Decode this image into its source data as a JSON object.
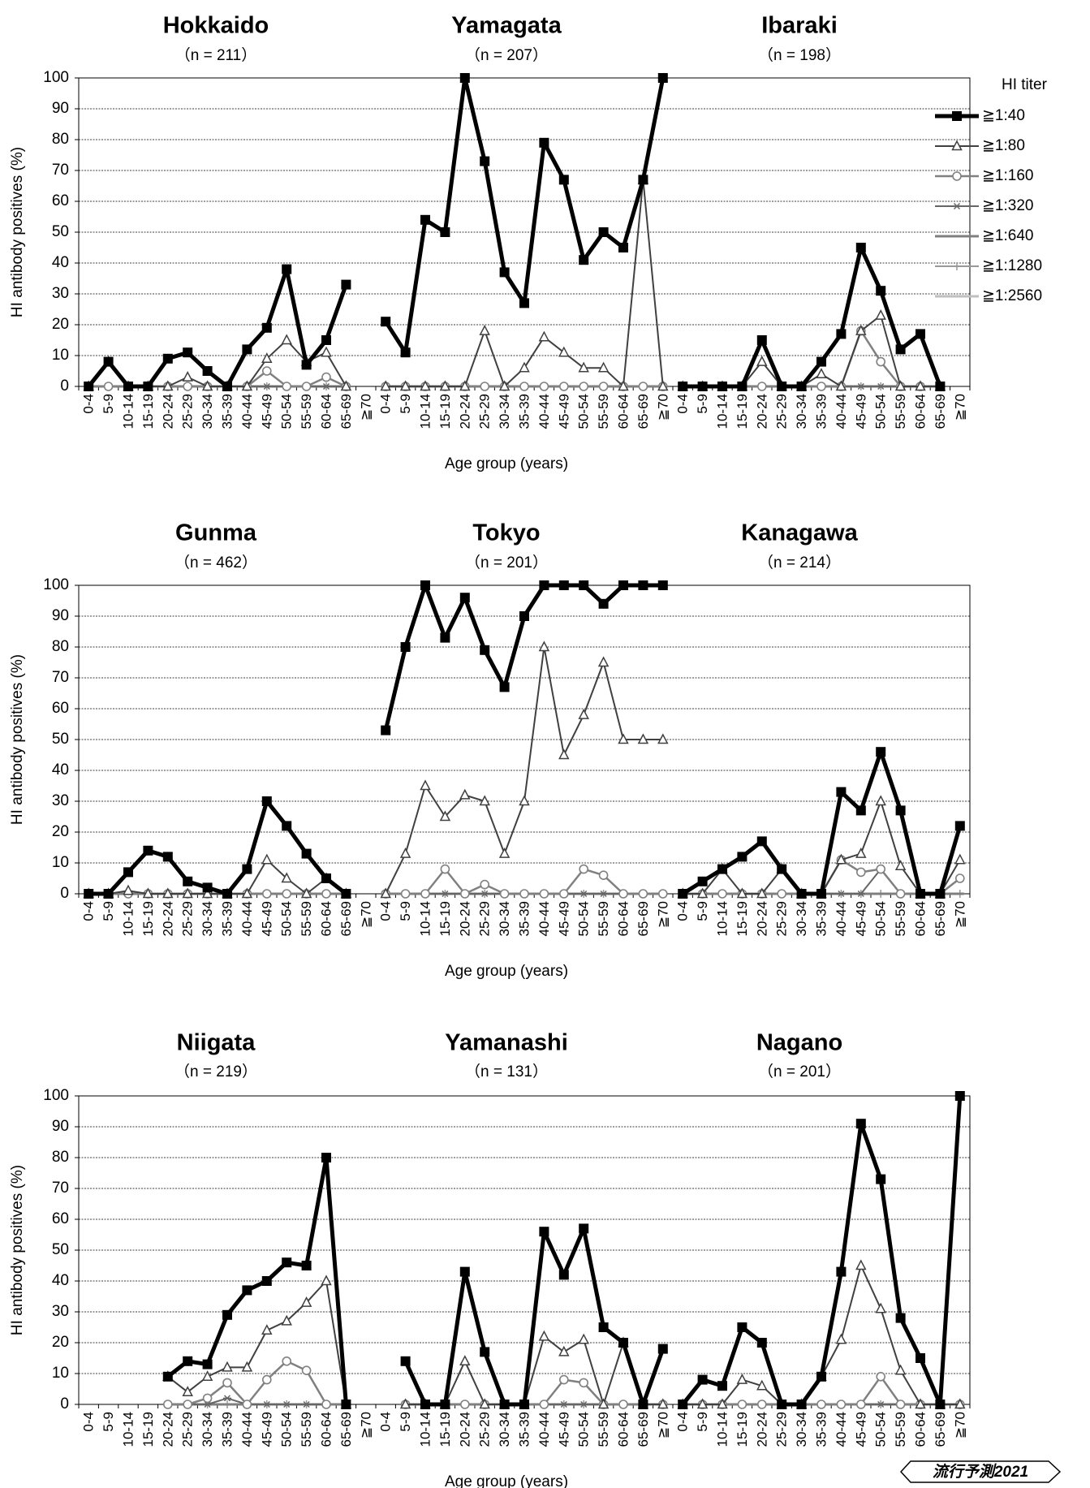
{
  "legend": {
    "title": "HI titer",
    "entries": [
      {
        "label": "≧1:40",
        "color": "#000000",
        "marker": "square",
        "width": 5
      },
      {
        "label": "≧1:80",
        "color": "#404040",
        "marker": "triangle",
        "width": 2
      },
      {
        "label": "≧1:160",
        "color": "#808080",
        "marker": "circle",
        "width": 2.5
      },
      {
        "label": "≧1:320",
        "color": "#666666",
        "marker": "star",
        "width": 2
      },
      {
        "label": "≧1:640",
        "color": "#7f7f7f",
        "marker": "dash",
        "width": 3
      },
      {
        "label": "≧1:1280",
        "color": "#999999",
        "marker": "plus",
        "width": 2
      },
      {
        "label": "≧1:2560",
        "color": "#bfbfbf",
        "marker": "none",
        "width": 3
      }
    ]
  },
  "stamp": "流行予測2021",
  "chart_data": {
    "type": "line",
    "ylabel": "HI antibody positives (%)",
    "xlabel": "Age group (years)",
    "ylim": [
      0,
      100
    ],
    "yticks": [
      0,
      10,
      20,
      30,
      40,
      50,
      60,
      70,
      80,
      90,
      100
    ],
    "grid": true,
    "legend_position": "right",
    "categories": [
      "0-4",
      "5-9",
      "10-14",
      "15-19",
      "20-24",
      "25-29",
      "30-34",
      "35-39",
      "40-44",
      "45-49",
      "50-54",
      "55-59",
      "60-64",
      "65-69",
      "≧70"
    ],
    "panels": [
      {
        "title": "Hokkaido",
        "n": "（n = 211）",
        "series": [
          [
            0,
            8,
            0,
            0,
            9,
            11,
            5,
            0,
            12,
            19,
            38,
            7,
            15,
            33,
            null
          ],
          [
            0,
            8,
            0,
            0,
            0,
            3,
            0,
            0,
            0,
            9,
            15,
            8,
            11,
            0,
            null
          ],
          [
            0,
            0,
            0,
            0,
            0,
            0,
            0,
            0,
            0,
            5,
            0,
            0,
            3,
            0,
            null
          ],
          [
            0,
            0,
            0,
            0,
            0,
            0,
            0,
            0,
            0,
            0,
            0,
            0,
            0,
            0,
            null
          ],
          [
            0,
            0,
            0,
            0,
            0,
            0,
            0,
            0,
            0,
            0,
            0,
            0,
            0,
            0,
            null
          ],
          [
            0,
            0,
            0,
            0,
            0,
            0,
            0,
            0,
            0,
            0,
            0,
            0,
            0,
            0,
            null
          ],
          [
            0,
            0,
            0,
            0,
            0,
            0,
            0,
            0,
            0,
            0,
            0,
            0,
            0,
            0,
            null
          ]
        ]
      },
      {
        "title": "Yamagata",
        "n": "（n = 207）",
        "series": [
          [
            21,
            11,
            54,
            50,
            100,
            73,
            37,
            27,
            79,
            67,
            41,
            50,
            45,
            67,
            100
          ],
          [
            0,
            0,
            0,
            0,
            0,
            18,
            0,
            6,
            16,
            11,
            6,
            6,
            0,
            67,
            0
          ],
          [
            0,
            0,
            0,
            0,
            0,
            0,
            0,
            0,
            0,
            0,
            0,
            0,
            0,
            0,
            0
          ],
          [
            0,
            0,
            0,
            0,
            0,
            0,
            0,
            0,
            0,
            0,
            0,
            0,
            0,
            0,
            0
          ],
          [
            0,
            0,
            0,
            0,
            0,
            0,
            0,
            0,
            0,
            0,
            0,
            0,
            0,
            0,
            0
          ],
          [
            0,
            0,
            0,
            0,
            0,
            0,
            0,
            0,
            0,
            0,
            0,
            0,
            0,
            0,
            0
          ],
          [
            0,
            0,
            0,
            0,
            0,
            0,
            0,
            0,
            0,
            0,
            0,
            0,
            0,
            0,
            0
          ]
        ]
      },
      {
        "title": "Ibaraki",
        "n": "（n = 198）",
        "series": [
          [
            0,
            0,
            0,
            0,
            15,
            0,
            0,
            8,
            17,
            45,
            31,
            12,
            17,
            0,
            null
          ],
          [
            0,
            0,
            0,
            0,
            8,
            0,
            0,
            4,
            0,
            18,
            23,
            0,
            0,
            0,
            null
          ],
          [
            0,
            0,
            0,
            0,
            0,
            0,
            0,
            0,
            0,
            18,
            8,
            0,
            0,
            0,
            null
          ],
          [
            0,
            0,
            0,
            0,
            0,
            0,
            0,
            0,
            0,
            0,
            0,
            0,
            0,
            0,
            null
          ],
          [
            0,
            0,
            0,
            0,
            0,
            0,
            0,
            0,
            0,
            0,
            0,
            0,
            0,
            0,
            null
          ],
          [
            0,
            0,
            0,
            0,
            0,
            0,
            0,
            0,
            0,
            0,
            0,
            0,
            0,
            0,
            null
          ],
          [
            0,
            0,
            0,
            0,
            0,
            0,
            0,
            0,
            0,
            0,
            0,
            0,
            0,
            0,
            null
          ]
        ]
      },
      {
        "title": "Gunma",
        "n": "（n = 462）",
        "series": [
          [
            0,
            0,
            7,
            14,
            12,
            4,
            2,
            0,
            8,
            30,
            22,
            13,
            5,
            0,
            null
          ],
          [
            0,
            0,
            1,
            0,
            0,
            0,
            0,
            0,
            0,
            11,
            5,
            0,
            5,
            0,
            null
          ],
          [
            0,
            0,
            0,
            0,
            0,
            0,
            0,
            0,
            0,
            0,
            0,
            0,
            0,
            0,
            null
          ],
          [
            0,
            0,
            0,
            0,
            0,
            0,
            0,
            0,
            0,
            0,
            0,
            0,
            0,
            0,
            null
          ],
          [
            0,
            0,
            0,
            0,
            0,
            0,
            0,
            0,
            0,
            0,
            0,
            0,
            0,
            0,
            null
          ],
          [
            0,
            0,
            0,
            0,
            0,
            0,
            0,
            0,
            0,
            0,
            0,
            0,
            0,
            0,
            null
          ],
          [
            0,
            0,
            0,
            0,
            0,
            0,
            0,
            0,
            0,
            0,
            0,
            0,
            0,
            0,
            null
          ]
        ]
      },
      {
        "title": "Tokyo",
        "n": "（n = 201）",
        "series": [
          [
            53,
            80,
            100,
            83,
            96,
            79,
            67,
            90,
            100,
            100,
            100,
            94,
            100,
            100,
            100
          ],
          [
            0,
            13,
            35,
            25,
            32,
            30,
            13,
            30,
            80,
            45,
            58,
            75,
            50,
            50,
            50
          ],
          [
            0,
            0,
            0,
            8,
            0,
            3,
            0,
            0,
            0,
            0,
            8,
            6,
            0,
            0,
            0
          ],
          [
            0,
            0,
            0,
            0,
            0,
            0,
            0,
            0,
            0,
            0,
            0,
            0,
            0,
            0,
            0
          ],
          [
            0,
            0,
            0,
            0,
            0,
            0,
            0,
            0,
            0,
            0,
            0,
            0,
            0,
            0,
            0
          ],
          [
            0,
            0,
            0,
            0,
            0,
            0,
            0,
            0,
            0,
            0,
            0,
            0,
            0,
            0,
            0
          ],
          [
            0,
            0,
            0,
            0,
            0,
            0,
            0,
            0,
            0,
            0,
            0,
            0,
            0,
            0,
            0
          ]
        ]
      },
      {
        "title": "Kanagawa",
        "n": "（n = 214）",
        "series": [
          [
            0,
            4,
            8,
            12,
            17,
            8,
            0,
            0,
            33,
            27,
            46,
            27,
            0,
            0,
            22
          ],
          [
            0,
            0,
            8,
            0,
            0,
            8,
            0,
            0,
            11,
            13,
            30,
            9,
            0,
            0,
            11
          ],
          [
            0,
            0,
            0,
            0,
            0,
            0,
            0,
            0,
            11,
            7,
            8,
            0,
            0,
            0,
            5
          ],
          [
            0,
            0,
            0,
            0,
            0,
            0,
            0,
            0,
            0,
            0,
            8,
            0,
            0,
            0,
            5
          ],
          [
            0,
            0,
            0,
            0,
            0,
            0,
            0,
            0,
            0,
            0,
            0,
            0,
            0,
            0,
            0
          ],
          [
            0,
            0,
            0,
            0,
            0,
            0,
            0,
            0,
            0,
            0,
            0,
            0,
            0,
            0,
            0
          ],
          [
            0,
            0,
            0,
            0,
            0,
            0,
            0,
            0,
            0,
            0,
            0,
            0,
            0,
            0,
            0
          ]
        ]
      },
      {
        "title": "Niigata",
        "n": "（n = 219）",
        "series": [
          [
            null,
            null,
            null,
            null,
            9,
            14,
            13,
            29,
            37,
            40,
            46,
            45,
            80,
            0,
            null
          ],
          [
            null,
            null,
            null,
            null,
            9,
            4,
            9,
            12,
            12,
            24,
            27,
            33,
            40,
            0,
            null
          ],
          [
            null,
            null,
            null,
            null,
            0,
            0,
            2,
            7,
            0,
            8,
            14,
            11,
            0,
            0,
            null
          ],
          [
            null,
            null,
            null,
            null,
            0,
            0,
            0,
            2,
            0,
            0,
            0,
            0,
            0,
            0,
            null
          ],
          [
            null,
            null,
            null,
            null,
            0,
            0,
            0,
            0,
            0,
            0,
            0,
            0,
            0,
            0,
            null
          ],
          [
            null,
            null,
            null,
            null,
            0,
            0,
            0,
            0,
            0,
            0,
            0,
            0,
            0,
            0,
            null
          ],
          [
            null,
            null,
            null,
            null,
            0,
            0,
            0,
            0,
            0,
            0,
            0,
            0,
            0,
            0,
            null
          ]
        ]
      },
      {
        "title": "Yamanashi",
        "n": "（n = 131）",
        "series": [
          [
            null,
            14,
            0,
            0,
            43,
            17,
            0,
            0,
            56,
            42,
            57,
            25,
            20,
            0,
            18
          ],
          [
            null,
            0,
            0,
            0,
            14,
            0,
            0,
            0,
            22,
            17,
            21,
            0,
            20,
            0,
            0
          ],
          [
            null,
            0,
            0,
            0,
            0,
            0,
            0,
            0,
            0,
            8,
            7,
            0,
            0,
            0,
            0
          ],
          [
            null,
            0,
            0,
            0,
            0,
            0,
            0,
            0,
            0,
            0,
            0,
            0,
            0,
            0,
            0
          ],
          [
            null,
            0,
            0,
            0,
            0,
            0,
            0,
            0,
            0,
            0,
            0,
            0,
            0,
            0,
            0
          ],
          [
            null,
            0,
            0,
            0,
            0,
            0,
            0,
            0,
            0,
            0,
            0,
            0,
            0,
            0,
            0
          ],
          [
            null,
            0,
            0,
            0,
            0,
            0,
            0,
            0,
            0,
            0,
            0,
            0,
            0,
            0,
            0
          ]
        ]
      },
      {
        "title": "Nagano",
        "n": "（n = 201）",
        "series": [
          [
            0,
            8,
            6,
            25,
            20,
            0,
            0,
            9,
            43,
            91,
            73,
            28,
            15,
            0,
            100
          ],
          [
            0,
            0,
            0,
            8,
            6,
            0,
            0,
            9,
            21,
            45,
            31,
            11,
            0,
            0,
            0
          ],
          [
            0,
            0,
            0,
            0,
            0,
            0,
            0,
            0,
            0,
            0,
            9,
            0,
            0,
            0,
            0
          ],
          [
            0,
            0,
            0,
            0,
            0,
            0,
            0,
            0,
            0,
            0,
            0,
            0,
            0,
            0,
            0
          ],
          [
            0,
            0,
            0,
            0,
            0,
            0,
            0,
            0,
            0,
            0,
            0,
            0,
            0,
            0,
            0
          ],
          [
            0,
            0,
            0,
            0,
            0,
            0,
            0,
            0,
            0,
            0,
            0,
            0,
            0,
            0,
            0
          ],
          [
            0,
            0,
            0,
            0,
            0,
            0,
            0,
            0,
            0,
            0,
            0,
            0,
            0,
            0,
            0
          ]
        ]
      }
    ]
  }
}
